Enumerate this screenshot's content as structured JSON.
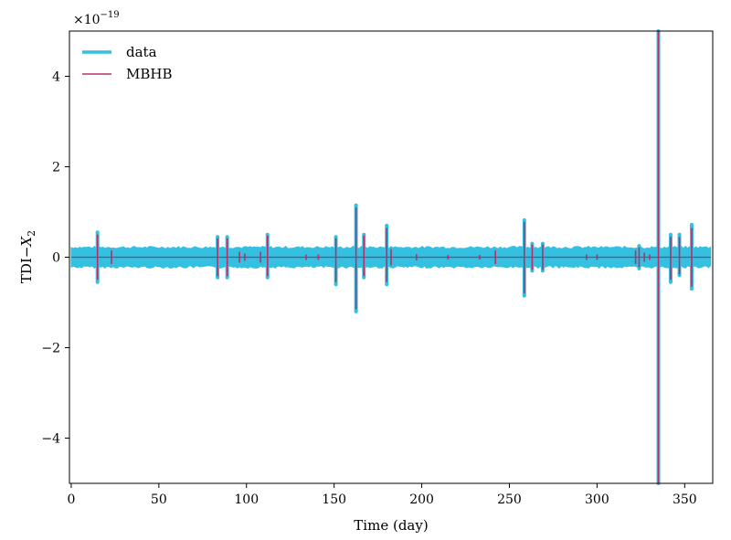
{
  "chart_data": {
    "type": "line",
    "xlabel": "Time (day)",
    "ylabel_main": "TDI",
    "ylabel_dash": "−",
    "ylabel_var": "X",
    "ylabel_sub": "2",
    "offset_text_base": "×10",
    "offset_text_exp": "−19",
    "xlim": [
      -1,
      366
    ],
    "ylim": [
      -5,
      5
    ],
    "xticks": [
      0,
      50,
      100,
      150,
      200,
      250,
      300,
      350
    ],
    "xtick_labels": [
      "0",
      "50",
      "100",
      "150",
      "200",
      "250",
      "300",
      "350"
    ],
    "yticks": [
      -4,
      -2,
      0,
      2,
      4
    ],
    "ytick_labels": [
      "−4",
      "−2",
      "0",
      "2",
      "4"
    ],
    "grid": false,
    "legend_position": "top-left",
    "series": [
      {
        "name": "data",
        "color": "#34c0e0",
        "noise_band": [
          -0.22,
          0.22
        ],
        "spikes": [
          {
            "x": 15,
            "low": -0.55,
            "high": 0.55
          },
          {
            "x": 83.5,
            "low": -0.45,
            "high": 0.45
          },
          {
            "x": 89,
            "low": -0.45,
            "high": 0.45
          },
          {
            "x": 112,
            "low": -0.45,
            "high": 0.5
          },
          {
            "x": 151,
            "low": -0.6,
            "high": 0.45
          },
          {
            "x": 162.5,
            "low": -1.2,
            "high": 1.15
          },
          {
            "x": 167,
            "low": -0.45,
            "high": 0.5
          },
          {
            "x": 180,
            "low": -0.6,
            "high": 0.7
          },
          {
            "x": 182.5,
            "low": -0.2,
            "high": 0.2
          },
          {
            "x": 258.5,
            "low": -0.85,
            "high": 0.82
          },
          {
            "x": 263,
            "low": -0.3,
            "high": 0.3
          },
          {
            "x": 269,
            "low": -0.3,
            "high": 0.3
          },
          {
            "x": 324,
            "low": -0.25,
            "high": 0.25
          },
          {
            "x": 335,
            "low": -5,
            "high": 5
          },
          {
            "x": 342,
            "low": -0.55,
            "high": 0.5
          },
          {
            "x": 347,
            "low": -0.4,
            "high": 0.5
          },
          {
            "x": 354,
            "low": -0.7,
            "high": 0.72
          }
        ]
      },
      {
        "name": "MBHB",
        "color": "#b5306a",
        "baseline": 0,
        "spikes": [
          {
            "x": 15,
            "low": -0.5,
            "high": 0.5
          },
          {
            "x": 23,
            "low": -0.15,
            "high": 0.15
          },
          {
            "x": 83.5,
            "low": -0.42,
            "high": 0.42
          },
          {
            "x": 89,
            "low": -0.42,
            "high": 0.42
          },
          {
            "x": 96,
            "low": -0.12,
            "high": 0.12
          },
          {
            "x": 99,
            "low": -0.08,
            "high": 0.08
          },
          {
            "x": 108,
            "low": -0.12,
            "high": 0.12
          },
          {
            "x": 112,
            "low": -0.42,
            "high": 0.48
          },
          {
            "x": 134,
            "low": -0.06,
            "high": 0.06
          },
          {
            "x": 141,
            "low": -0.06,
            "high": 0.06
          },
          {
            "x": 151,
            "low": -0.55,
            "high": 0.42
          },
          {
            "x": 162.5,
            "low": -1.15,
            "high": 1.1
          },
          {
            "x": 167,
            "low": -0.42,
            "high": 0.48
          },
          {
            "x": 180,
            "low": -0.55,
            "high": 0.65
          },
          {
            "x": 182.5,
            "low": -0.18,
            "high": 0.18
          },
          {
            "x": 197,
            "low": -0.07,
            "high": 0.07
          },
          {
            "x": 215,
            "low": -0.05,
            "high": 0.05
          },
          {
            "x": 233,
            "low": -0.05,
            "high": 0.05
          },
          {
            "x": 242,
            "low": -0.15,
            "high": 0.15
          },
          {
            "x": 258.5,
            "low": -0.8,
            "high": 0.78
          },
          {
            "x": 263,
            "low": -0.28,
            "high": 0.28
          },
          {
            "x": 269,
            "low": -0.28,
            "high": 0.28
          },
          {
            "x": 294,
            "low": -0.06,
            "high": 0.06
          },
          {
            "x": 300,
            "low": -0.06,
            "high": 0.06
          },
          {
            "x": 322,
            "low": -0.15,
            "high": 0.15
          },
          {
            "x": 324,
            "low": -0.22,
            "high": 0.22
          },
          {
            "x": 327,
            "low": -0.1,
            "high": 0.1
          },
          {
            "x": 330,
            "low": -0.06,
            "high": 0.06
          },
          {
            "x": 335,
            "low": -5,
            "high": 5
          },
          {
            "x": 342,
            "low": -0.5,
            "high": 0.45
          },
          {
            "x": 347,
            "low": -0.38,
            "high": 0.45
          },
          {
            "x": 354,
            "low": -0.65,
            "high": 0.65
          }
        ]
      }
    ]
  }
}
